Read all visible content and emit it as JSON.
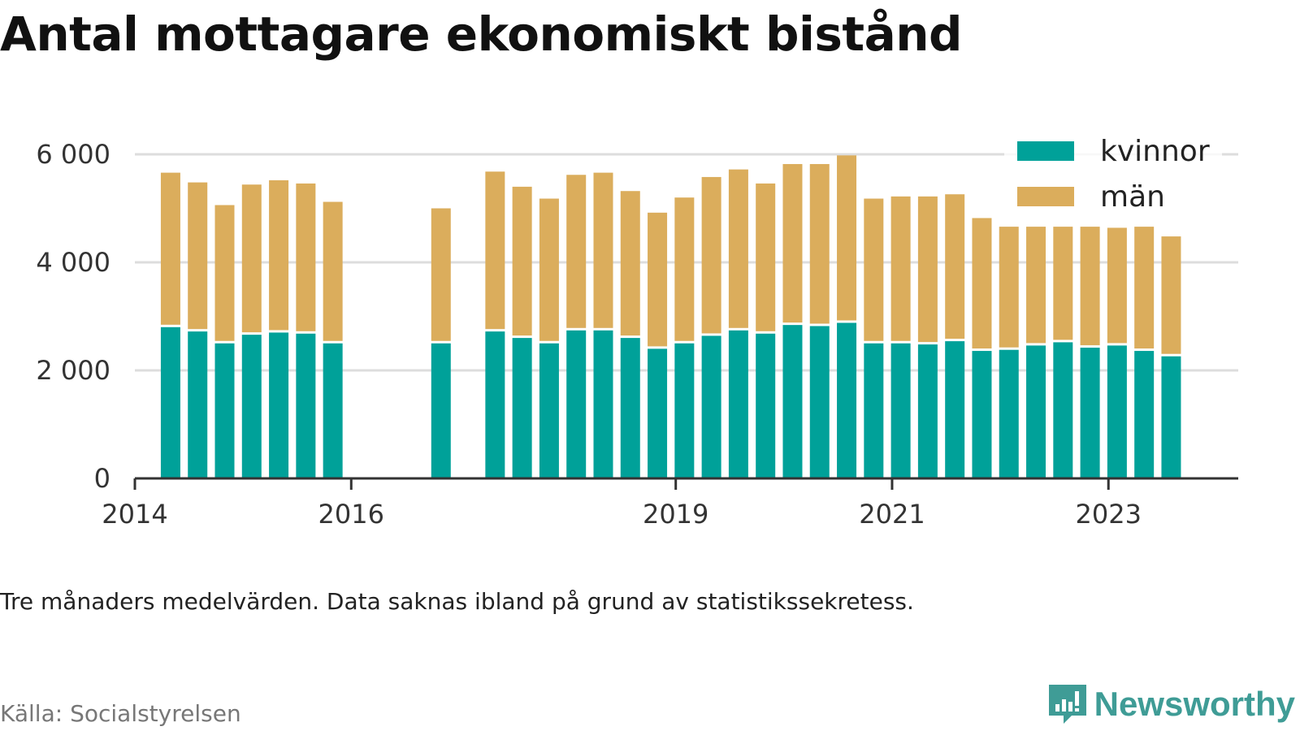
{
  "chart_data": {
    "type": "bar",
    "stacked": true,
    "title": "Antal mottagare ekonomiskt bistånd",
    "note": "Tre månaders medelvärden. Data saknas ibland på grund av statistikssekretess.",
    "source": "Källa: Socialstyrelsen",
    "brand": "Newsworthy",
    "ylim": [
      0,
      6000
    ],
    "yticks": [
      0,
      2000,
      4000,
      6000
    ],
    "ytick_labels": [
      "0",
      "2 000",
      "4 000",
      "6 000"
    ],
    "xlim": [
      2014.0,
      2024.2
    ],
    "xticks": [
      2014,
      2016,
      2019,
      2021,
      2023
    ],
    "xtick_labels": [
      "2014",
      "2016",
      "2019",
      "2021",
      "2023"
    ],
    "grid": true,
    "legend_position": "top-right",
    "colors": {
      "kvinnor": "#00a199",
      "man": "#dbad5c",
      "man_faded": "#f7eee0",
      "axis": "#333333",
      "grid": "#dddddd"
    },
    "series": [
      {
        "name": "kvinnor",
        "x": [
          2014.33,
          2014.58,
          2014.83,
          2015.08,
          2015.33,
          2015.58,
          2015.83,
          2016.83,
          2017.33,
          2017.58,
          2017.83,
          2018.08,
          2018.33,
          2018.58,
          2018.83,
          2019.08,
          2019.33,
          2019.58,
          2019.83,
          2020.08,
          2020.33,
          2020.58,
          2020.83,
          2021.08,
          2021.33,
          2021.58,
          2021.83,
          2022.08,
          2022.33,
          2022.58,
          2022.83,
          2023.08,
          2023.33,
          2023.58
        ],
        "values": [
          2800,
          2720,
          2500,
          2660,
          2700,
          2680,
          2500,
          2500,
          2720,
          2600,
          2500,
          2740,
          2740,
          2600,
          2400,
          2500,
          2640,
          2740,
          2680,
          2840,
          2820,
          2880,
          2500,
          2500,
          2480,
          2540,
          2360,
          2380,
          2460,
          2520,
          2420,
          2460,
          2360,
          2260
        ]
      },
      {
        "name": "män",
        "x": [
          2014.33,
          2014.58,
          2014.83,
          2015.08,
          2015.33,
          2015.58,
          2015.83,
          2016.83,
          2017.33,
          2017.58,
          2017.83,
          2018.08,
          2018.33,
          2018.58,
          2018.83,
          2019.08,
          2019.33,
          2019.58,
          2019.83,
          2020.08,
          2020.33,
          2020.58,
          2020.83,
          2021.08,
          2021.33,
          2021.58,
          2021.83,
          2022.08,
          2022.33,
          2022.58,
          2022.83,
          2023.08,
          2023.33,
          2023.58
        ],
        "values": [
          2860,
          2760,
          2560,
          2780,
          2820,
          2780,
          2620,
          2500,
          2960,
          2800,
          2680,
          2880,
          2920,
          2720,
          2520,
          2700,
          2940,
          2980,
          2780,
          2980,
          3000,
          3100,
          2680,
          2720,
          2740,
          2720,
          2460,
          2280,
          2200,
          2140,
          2240,
          2180,
          2300,
          2220
        ]
      }
    ]
  }
}
